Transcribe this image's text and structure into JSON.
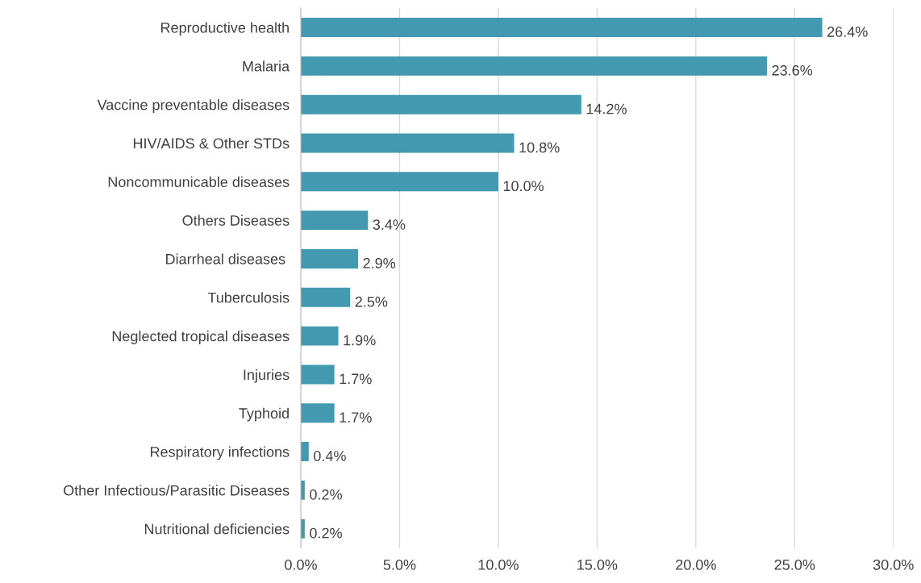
{
  "chart_data": {
    "type": "bar",
    "orientation": "horizontal",
    "categories": [
      "Reproductive health",
      "Malaria",
      "Vaccine preventable diseases",
      "HIV/AIDS & Other STDs",
      "Noncommunicable diseases",
      "Others Diseases",
      "Diarrheal diseases ",
      "Tuberculosis",
      "Neglected tropical diseases",
      "Injuries",
      "Typhoid",
      "Respiratory infections",
      "Other Infectious/Parasitic Diseases",
      "Nutritional deficiencies"
    ],
    "values": [
      26.4,
      23.6,
      14.2,
      10.8,
      10.0,
      3.4,
      2.9,
      2.5,
      1.9,
      1.7,
      1.7,
      0.4,
      0.2,
      0.2
    ],
    "value_labels": [
      "26.4%",
      "23.6%",
      "14.2%",
      "10.8%",
      "10.0%",
      "3.4%",
      "2.9%",
      "2.5%",
      "1.9%",
      "1.7%",
      "1.7%",
      "0.4%",
      "0.2%",
      "0.2%"
    ],
    "color": "#4399b0",
    "xlim": [
      0,
      30
    ],
    "xticks": [
      {
        "value": 0,
        "label": "0.0%"
      },
      {
        "value": 5,
        "label": "5.0%"
      },
      {
        "value": 10,
        "label": "10.0%"
      },
      {
        "value": 15,
        "label": "15.0%"
      },
      {
        "value": 20,
        "label": "20.0%"
      },
      {
        "value": 25,
        "label": "25.0%"
      },
      {
        "value": 30,
        "label": "30.0%"
      }
    ],
    "grid": "x",
    "legend": false
  }
}
